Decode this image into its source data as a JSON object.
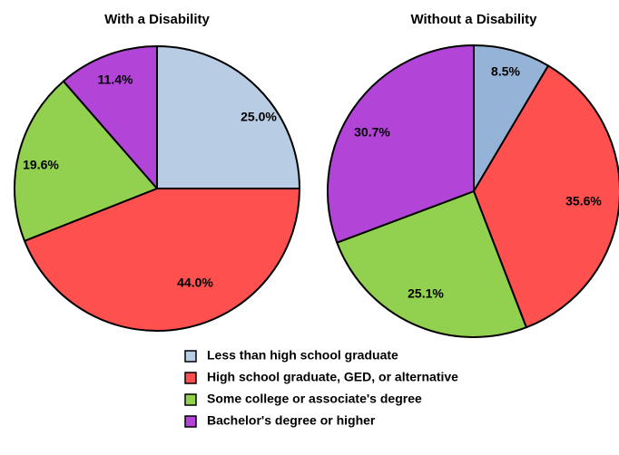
{
  "chart_data": {
    "type": "pie",
    "categories": [
      "Less than high school graduate",
      "High school graduate, GED, or alternative",
      "Some college or associate's degree",
      "Bachelor's degree or higher"
    ],
    "colors": [
      "#b8cce4",
      "#ff5050",
      "#92d050",
      "#b344d8"
    ],
    "pies": [
      {
        "title": "With a Disability",
        "values": [
          25.0,
          44.0,
          19.6,
          11.4
        ],
        "labels": [
          "25.0%",
          "44.0%",
          "19.6%",
          "11.4%"
        ],
        "colors": [
          "#b8cce4",
          "#ff5050",
          "#92d050",
          "#b344d8"
        ]
      },
      {
        "title": "Without a Disability",
        "values": [
          8.5,
          35.6,
          25.1,
          30.7
        ],
        "labels": [
          "8.5%",
          "35.6%",
          "25.1%",
          "30.7%"
        ],
        "colors": [
          "#95b3d7",
          "#ff5050",
          "#92d050",
          "#b344d8"
        ]
      }
    ],
    "legend": {
      "position": "bottom",
      "entries": [
        "Less than high school graduate",
        "High school graduate, GED, or alternative",
        "Some college or associate's degree",
        "Bachelor's degree or higher"
      ]
    }
  }
}
